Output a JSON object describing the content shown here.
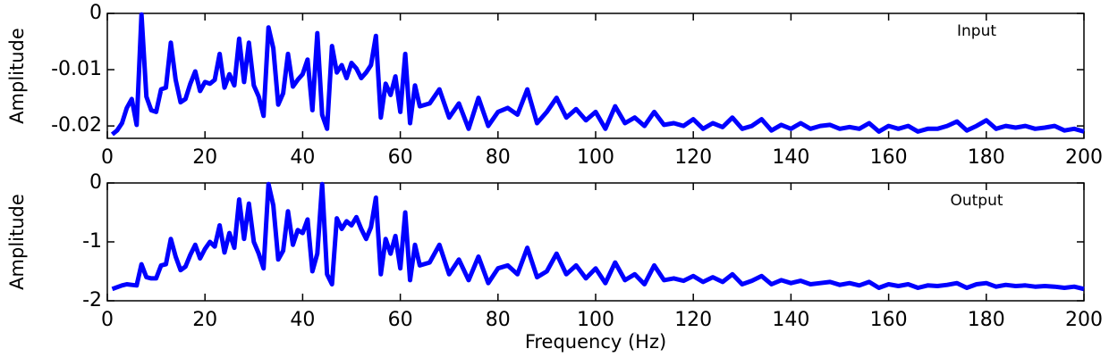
{
  "chart_data": [
    {
      "type": "line",
      "ylabel": "Amplitude",
      "x": [
        1,
        2,
        3,
        4,
        5,
        6,
        7,
        8,
        9,
        10,
        11,
        12,
        13,
        14,
        15,
        16,
        17,
        18,
        19,
        20,
        21,
        22,
        23,
        24,
        25,
        26,
        27,
        28,
        29,
        30,
        31,
        32,
        33,
        34,
        35,
        36,
        37,
        38,
        39,
        40,
        41,
        42,
        43,
        44,
        45,
        46,
        47,
        48,
        49,
        50,
        51,
        52,
        53,
        54,
        55,
        56,
        57,
        58,
        59,
        60,
        61,
        62,
        63,
        64,
        66,
        68,
        70,
        72,
        74,
        76,
        78,
        80,
        82,
        84,
        86,
        88,
        90,
        92,
        94,
        96,
        98,
        100,
        102,
        104,
        106,
        108,
        110,
        112,
        114,
        116,
        118,
        120,
        122,
        124,
        126,
        128,
        130,
        132,
        134,
        136,
        138,
        140,
        142,
        144,
        146,
        148,
        150,
        152,
        154,
        156,
        158,
        160,
        162,
        164,
        166,
        168,
        170,
        172,
        174,
        176,
        178,
        180,
        182,
        184,
        186,
        188,
        190,
        192,
        194,
        196,
        198,
        200
      ],
      "series": [
        {
          "name": "Input",
          "color": "#0000ff",
          "values": [
            -0.0215,
            -0.0208,
            -0.0195,
            -0.0168,
            -0.0152,
            -0.0198,
            -0.0002,
            -0.0148,
            -0.0172,
            -0.0175,
            -0.0135,
            -0.0132,
            -0.0052,
            -0.0118,
            -0.0158,
            -0.0152,
            -0.0125,
            -0.0103,
            -0.0138,
            -0.0122,
            -0.0125,
            -0.0118,
            -0.0072,
            -0.0132,
            -0.0108,
            -0.0128,
            -0.0045,
            -0.0122,
            -0.0052,
            -0.0128,
            -0.0148,
            -0.0182,
            -0.0025,
            -0.0062,
            -0.0162,
            -0.0142,
            -0.0072,
            -0.013,
            -0.0118,
            -0.0108,
            -0.0082,
            -0.0172,
            -0.0035,
            -0.018,
            -0.0205,
            -0.0058,
            -0.0105,
            -0.0092,
            -0.0115,
            -0.0088,
            -0.0098,
            -0.0115,
            -0.0105,
            -0.0092,
            -0.004,
            -0.0185,
            -0.0125,
            -0.0145,
            -0.0112,
            -0.0175,
            -0.0072,
            -0.0195,
            -0.0128,
            -0.0165,
            -0.016,
            -0.0135,
            -0.0185,
            -0.016,
            -0.0205,
            -0.015,
            -0.02,
            -0.0175,
            -0.0168,
            -0.018,
            -0.0135,
            -0.0195,
            -0.0175,
            -0.015,
            -0.0185,
            -0.017,
            -0.019,
            -0.0175,
            -0.0205,
            -0.0165,
            -0.0195,
            -0.0185,
            -0.02,
            -0.0175,
            -0.0198,
            -0.0195,
            -0.02,
            -0.0188,
            -0.0205,
            -0.0195,
            -0.0202,
            -0.0185,
            -0.0205,
            -0.02,
            -0.0188,
            -0.0208,
            -0.0198,
            -0.0205,
            -0.0195,
            -0.0205,
            -0.02,
            -0.0198,
            -0.0205,
            -0.0202,
            -0.0205,
            -0.0195,
            -0.021,
            -0.02,
            -0.0205,
            -0.02,
            -0.021,
            -0.0205,
            -0.0205,
            -0.02,
            -0.0192,
            -0.0208,
            -0.02,
            -0.019,
            -0.0205,
            -0.02,
            -0.0203,
            -0.02,
            -0.0205,
            -0.0203,
            -0.02,
            -0.0208,
            -0.0205,
            -0.021
          ]
        }
      ],
      "xlim": [
        0,
        200
      ],
      "xticks": [
        0,
        20,
        40,
        60,
        80,
        100,
        120,
        140,
        160,
        180,
        200
      ],
      "ylim": [
        -0.0222,
        0
      ],
      "yticks": [
        0,
        -0.01,
        -0.02
      ]
    },
    {
      "type": "line",
      "ylabel": "Amplitude",
      "xlabel": "Frequency (Hz)",
      "x": [
        1,
        2,
        3,
        4,
        5,
        6,
        7,
        8,
        9,
        10,
        11,
        12,
        13,
        14,
        15,
        16,
        17,
        18,
        19,
        20,
        21,
        22,
        23,
        24,
        25,
        26,
        27,
        28,
        29,
        30,
        31,
        32,
        33,
        34,
        35,
        36,
        37,
        38,
        39,
        40,
        41,
        42,
        43,
        44,
        45,
        46,
        47,
        48,
        49,
        50,
        51,
        52,
        53,
        54,
        55,
        56,
        57,
        58,
        59,
        60,
        61,
        62,
        63,
        64,
        66,
        68,
        70,
        72,
        74,
        76,
        78,
        80,
        82,
        84,
        86,
        88,
        90,
        92,
        94,
        96,
        98,
        100,
        102,
        104,
        106,
        108,
        110,
        112,
        114,
        116,
        118,
        120,
        122,
        124,
        126,
        128,
        130,
        132,
        134,
        136,
        138,
        140,
        142,
        144,
        146,
        148,
        150,
        152,
        154,
        156,
        158,
        160,
        162,
        164,
        166,
        168,
        170,
        172,
        174,
        176,
        178,
        180,
        182,
        184,
        186,
        188,
        190,
        192,
        194,
        196,
        198,
        200
      ],
      "series": [
        {
          "name": "Output",
          "color": "#0000ff",
          "values": [
            -1.8,
            -1.77,
            -1.74,
            -1.72,
            -1.73,
            -1.74,
            -1.38,
            -1.6,
            -1.62,
            -1.62,
            -1.4,
            -1.38,
            -0.95,
            -1.25,
            -1.48,
            -1.42,
            -1.22,
            -1.05,
            -1.28,
            -1.12,
            -1.0,
            -1.08,
            -0.72,
            -1.18,
            -0.85,
            -1.1,
            -0.28,
            -0.95,
            -0.35,
            -1.0,
            -1.2,
            -1.45,
            -0.02,
            -0.38,
            -1.3,
            -1.15,
            -0.48,
            -1.05,
            -0.8,
            -0.85,
            -0.62,
            -1.5,
            -1.2,
            -0.02,
            -1.55,
            -1.72,
            -0.6,
            -0.78,
            -0.65,
            -0.72,
            -0.58,
            -0.78,
            -0.95,
            -0.75,
            -0.25,
            -1.55,
            -0.95,
            -1.2,
            -0.9,
            -1.45,
            -0.5,
            -1.65,
            -1.05,
            -1.4,
            -1.35,
            -1.05,
            -1.55,
            -1.3,
            -1.65,
            -1.25,
            -1.7,
            -1.45,
            -1.4,
            -1.55,
            -1.1,
            -1.6,
            -1.5,
            -1.2,
            -1.55,
            -1.4,
            -1.62,
            -1.45,
            -1.7,
            -1.35,
            -1.65,
            -1.55,
            -1.72,
            -1.4,
            -1.65,
            -1.62,
            -1.66,
            -1.58,
            -1.68,
            -1.6,
            -1.68,
            -1.55,
            -1.72,
            -1.66,
            -1.58,
            -1.72,
            -1.65,
            -1.7,
            -1.66,
            -1.72,
            -1.7,
            -1.68,
            -1.73,
            -1.7,
            -1.74,
            -1.68,
            -1.78,
            -1.72,
            -1.75,
            -1.72,
            -1.78,
            -1.74,
            -1.75,
            -1.73,
            -1.7,
            -1.78,
            -1.72,
            -1.7,
            -1.76,
            -1.73,
            -1.75,
            -1.74,
            -1.76,
            -1.75,
            -1.76,
            -1.78,
            -1.76,
            -1.8
          ]
        }
      ],
      "xlim": [
        0,
        200
      ],
      "xticks": [
        0,
        20,
        40,
        60,
        80,
        100,
        120,
        140,
        160,
        180,
        200
      ],
      "ylim": [
        -2,
        0
      ],
      "yticks": [
        0,
        -1,
        -2
      ]
    }
  ]
}
